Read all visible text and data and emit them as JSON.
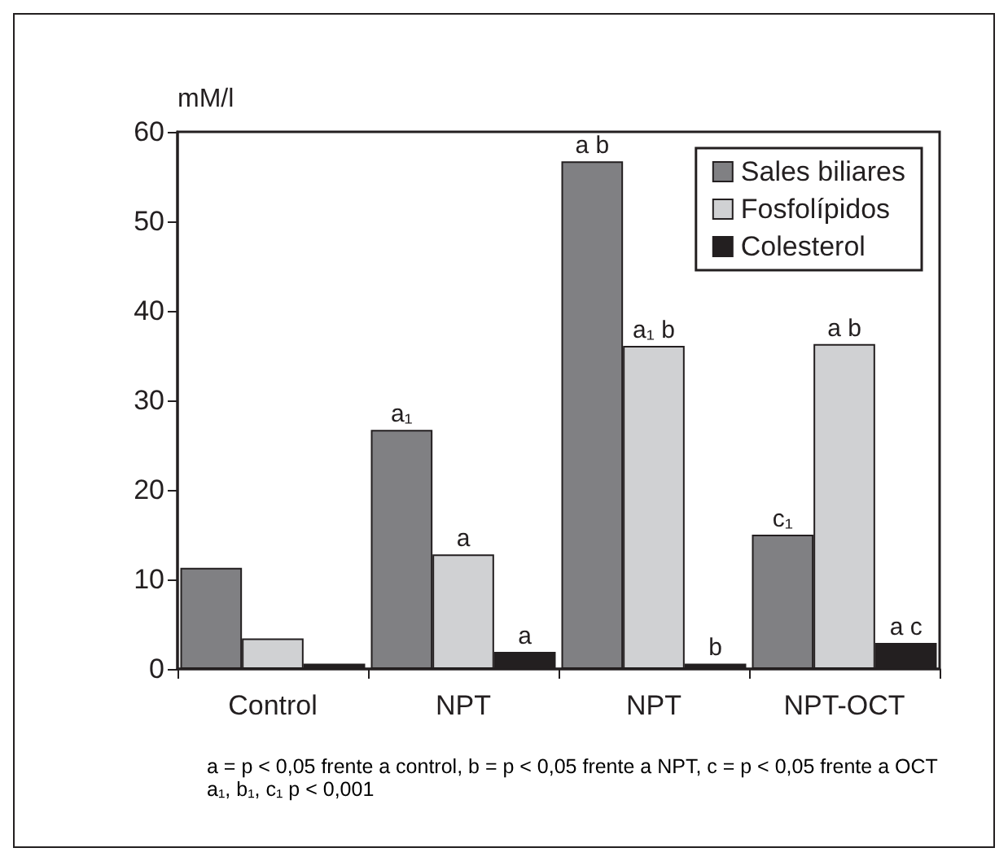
{
  "chart_data": {
    "type": "bar",
    "ylabel": "mM/l",
    "categories": [
      "Control",
      "NPT",
      "NPT",
      "NPT-OCT"
    ],
    "series": [
      {
        "name": "Sales biliares",
        "color": "#808083",
        "values": [
          11.3,
          26.7,
          56.7,
          15
        ],
        "value_labels": [
          null,
          "a₁",
          "a b",
          "c₁"
        ]
      },
      {
        "name": "Fosfolípidos",
        "color": "#d0d1d3",
        "values": [
          3.4,
          12.8,
          36.1,
          36.3
        ],
        "value_labels": [
          null,
          "a",
          "a₁ b",
          "a b"
        ]
      },
      {
        "name": "Colesterol",
        "color": "#231f20",
        "values": [
          0.6,
          1.9,
          0.6,
          2.9
        ],
        "value_labels": [
          null,
          "a",
          "b",
          "a c"
        ]
      }
    ],
    "ylim": [
      0,
      60
    ],
    "yticks": [
      0,
      10,
      20,
      30,
      40,
      50,
      60
    ],
    "grid": false,
    "legend": "top right",
    "annotations": [
      "a = p < 0,05 frente a control, b = p < 0,05 frente a NPT, c = p < 0,05 frente a OCT a₁, b₁, c₁ p < 0,001"
    ]
  }
}
